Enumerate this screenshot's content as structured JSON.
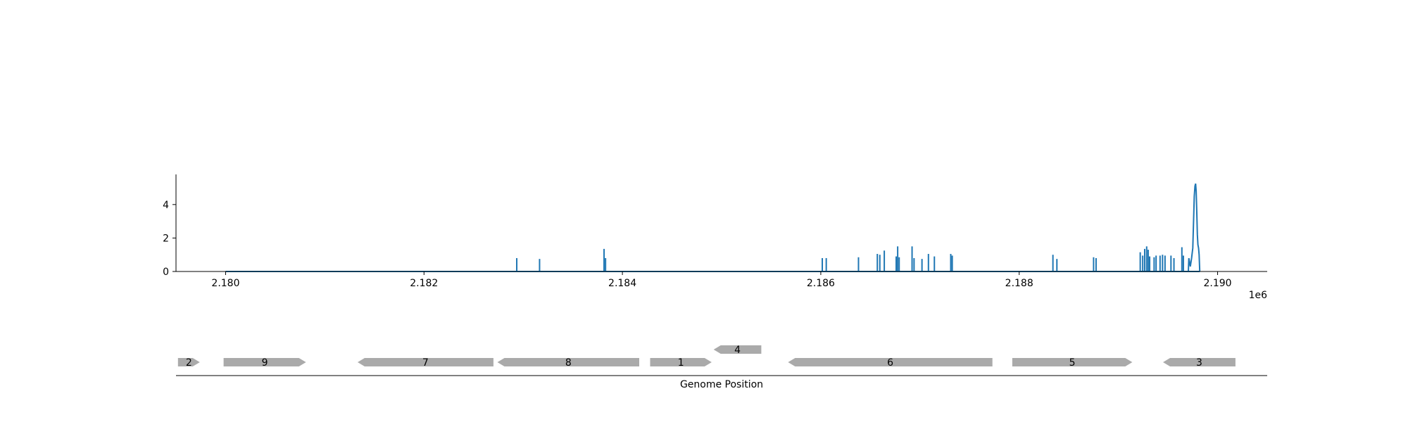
{
  "chart_data": [
    {
      "type": "line",
      "title": "",
      "xlabel": "",
      "ylabel": "",
      "offset_label": "1e6",
      "x_ticks": [
        {
          "value": 2180000,
          "label": "2.180"
        },
        {
          "value": 2182000,
          "label": "2.182"
        },
        {
          "value": 2184000,
          "label": "2.184"
        },
        {
          "value": 2186000,
          "label": "2.186"
        },
        {
          "value": 2188000,
          "label": "2.188"
        },
        {
          "value": 2190000,
          "label": "2.190"
        }
      ],
      "y_ticks": [
        {
          "value": 0,
          "label": "0"
        },
        {
          "value": 2,
          "label": "2"
        },
        {
          "value": 4,
          "label": "4"
        }
      ],
      "xlim": [
        2179500,
        2190500
      ],
      "ylim": [
        0,
        5.8
      ],
      "grid": false,
      "series": [
        {
          "color": "#1f77b4",
          "baseline": [
            2180000,
            2189820
          ],
          "spikes": [
            {
              "x": 2182935,
              "y": 0.8
            },
            {
              "x": 2183165,
              "y": 0.75
            },
            {
              "x": 2183815,
              "y": 1.35
            },
            {
              "x": 2183830,
              "y": 0.8
            },
            {
              "x": 2186015,
              "y": 0.8
            },
            {
              "x": 2186055,
              "y": 0.8
            },
            {
              "x": 2186380,
              "y": 0.85
            },
            {
              "x": 2186570,
              "y": 1.05
            },
            {
              "x": 2186595,
              "y": 1.0
            },
            {
              "x": 2186640,
              "y": 1.25
            },
            {
              "x": 2186760,
              "y": 0.9
            },
            {
              "x": 2186775,
              "y": 1.5
            },
            {
              "x": 2186790,
              "y": 0.85
            },
            {
              "x": 2186920,
              "y": 1.5
            },
            {
              "x": 2186940,
              "y": 0.8
            },
            {
              "x": 2187020,
              "y": 0.75
            },
            {
              "x": 2187085,
              "y": 1.05
            },
            {
              "x": 2187145,
              "y": 0.9
            },
            {
              "x": 2187310,
              "y": 1.05
            },
            {
              "x": 2187325,
              "y": 0.95
            },
            {
              "x": 2188340,
              "y": 1.0
            },
            {
              "x": 2188380,
              "y": 0.75
            },
            {
              "x": 2188750,
              "y": 0.85
            },
            {
              "x": 2188775,
              "y": 0.8
            },
            {
              "x": 2189220,
              "y": 1.15
            },
            {
              "x": 2189245,
              "y": 0.95
            },
            {
              "x": 2189265,
              "y": 1.35
            },
            {
              "x": 2189285,
              "y": 1.5
            },
            {
              "x": 2189300,
              "y": 1.3
            },
            {
              "x": 2189315,
              "y": 0.9
            },
            {
              "x": 2189360,
              "y": 0.85
            },
            {
              "x": 2189380,
              "y": 0.95
            },
            {
              "x": 2189420,
              "y": 0.95
            },
            {
              "x": 2189445,
              "y": 1.0
            },
            {
              "x": 2189470,
              "y": 0.95
            },
            {
              "x": 2189530,
              "y": 0.95
            },
            {
              "x": 2189560,
              "y": 0.8
            },
            {
              "x": 2189640,
              "y": 1.45
            },
            {
              "x": 2189655,
              "y": 0.95
            }
          ],
          "peak": [
            [
              2189705,
              0
            ],
            [
              2189710,
              0.8
            ],
            [
              2189725,
              0.3
            ],
            [
              2189738,
              0.8
            ],
            [
              2189750,
              1.4
            ],
            [
              2189758,
              3.0
            ],
            [
              2189765,
              4.5
            ],
            [
              2189772,
              5.1
            ],
            [
              2189778,
              5.25
            ],
            [
              2189784,
              4.8
            ],
            [
              2189790,
              3.5
            ],
            [
              2189796,
              2.2
            ],
            [
              2189802,
              1.6
            ],
            [
              2189808,
              1.4
            ],
            [
              2189814,
              1.0
            ],
            [
              2189820,
              0
            ]
          ]
        }
      ]
    },
    {
      "type": "gene_track",
      "xlabel": "Genome Position",
      "genes": [
        {
          "label": "2",
          "start": 2179520,
          "end": 2179740,
          "strand": "+",
          "row": 0
        },
        {
          "label": "9",
          "start": 2179980,
          "end": 2180810,
          "strand": "+",
          "row": 0
        },
        {
          "label": "7",
          "start": 2181330,
          "end": 2182700,
          "strand": "-",
          "row": 0
        },
        {
          "label": "8",
          "start": 2182740,
          "end": 2184170,
          "strand": "-",
          "row": 0
        },
        {
          "label": "1",
          "start": 2184280,
          "end": 2184900,
          "strand": "+",
          "row": 0
        },
        {
          "label": "4",
          "start": 2184920,
          "end": 2185400,
          "strand": "-",
          "row": 1
        },
        {
          "label": "6",
          "start": 2185670,
          "end": 2187730,
          "strand": "-",
          "row": 0
        },
        {
          "label": "5",
          "start": 2187930,
          "end": 2189140,
          "strand": "+",
          "row": 0
        },
        {
          "label": "3",
          "start": 2189450,
          "end": 2190180,
          "strand": "-",
          "row": 0
        }
      ],
      "color": "#aaaaaa"
    }
  ]
}
